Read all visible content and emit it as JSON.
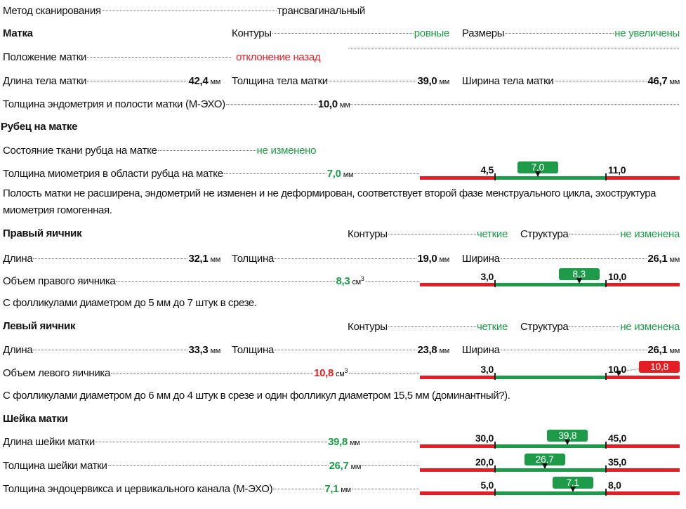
{
  "scan_method": {
    "label": "Метод сканирования",
    "value": "трансвагинальный"
  },
  "uterus": {
    "title": "Матка",
    "contours": {
      "label": "Контуры",
      "value": "ровные"
    },
    "size": {
      "label": "Размеры",
      "value": "не увеличены"
    },
    "position": {
      "label": "Положение матки",
      "value": "отклонение назад"
    },
    "length": {
      "label": "Длина тела матки",
      "value": "42,4",
      "unit": "мм"
    },
    "thickness": {
      "label": "Толщина тела матки",
      "value": "39,0",
      "unit": "мм"
    },
    "width": {
      "label": "Ширина тела матки",
      "value": "46,7",
      "unit": "мм"
    },
    "endometrium": {
      "label": "Толщина эндометрия и полости матки (М-ЭХО)",
      "value": "10,0",
      "unit": "мм"
    }
  },
  "scar": {
    "title": "Рубец на матке",
    "tissue": {
      "label": "Состояние ткани рубца на матке",
      "value": "не изменено"
    },
    "myometrium": {
      "label": "Толщина миометрия в области рубца на матке",
      "value": "7,0",
      "unit": "мм"
    }
  },
  "uterus_conclusion": "Полость матки не расширена, эндометрий не изменен и не деформирован, соответствует второй фазе менструального цикла, эхоструктура миометрия гомогенная.",
  "right_ovary": {
    "title": "Правый яичник",
    "contours": {
      "label": "Контуры",
      "value": "четкие"
    },
    "structure": {
      "label": "Структура",
      "value": "не изменена"
    },
    "length": {
      "label": "Длина",
      "value": "32,1",
      "unit": "мм"
    },
    "thickness": {
      "label": "Толщина",
      "value": "19,0",
      "unit": "мм"
    },
    "width": {
      "label": "Ширина",
      "value": "26,1",
      "unit": "мм"
    },
    "volume": {
      "label": "Объем правого яичника",
      "value": "8,3",
      "unit": "см",
      "sup": "3"
    },
    "note": "С фолликулами диаметром до 5 мм до 7 штук в срезе."
  },
  "left_ovary": {
    "title": "Левый яичник",
    "contours": {
      "label": "Контуры",
      "value": "четкие"
    },
    "structure": {
      "label": "Структура",
      "value": "не изменена"
    },
    "length": {
      "label": "Длина",
      "value": "33,3",
      "unit": "мм"
    },
    "thickness": {
      "label": "Толщина",
      "value": "23,8",
      "unit": "мм"
    },
    "width": {
      "label": "Ширина",
      "value": "26,1",
      "unit": "мм"
    },
    "volume": {
      "label": "Объем левого яичника",
      "value": "10,8",
      "unit": "см",
      "sup": "3"
    },
    "note": "С фолликулами диаметром до 6 мм до 4 штук в срезе и один фолликул диаметром 15,5 мм (доминантный?)."
  },
  "cervix": {
    "title": "Шейка матки",
    "length": {
      "label": "Длина шейки матки",
      "value": "39,8",
      "unit": "мм"
    },
    "thickness": {
      "label": "Толщина шейки матки",
      "value": "26,7",
      "unit": "мм"
    },
    "endocervix": {
      "label": "Толщина эндоцервикса и цервикального канала (М-ЭХО)",
      "value": "7,1",
      "unit": "мм"
    }
  },
  "scales": [
    {
      "min": 4.5,
      "max": 11.0,
      "min_label": "4,5",
      "max_label": "11,0",
      "value": 7.0,
      "value_label": "7,0"
    },
    {
      "min": 3.0,
      "max": 10.0,
      "min_label": "3,0",
      "max_label": "10,0",
      "value": 8.3,
      "value_label": "8,3"
    },
    {
      "min": 3.0,
      "max": 10.0,
      "min_label": "3,0",
      "max_label": "10,0",
      "value": 10.8,
      "value_label": "10,8"
    },
    {
      "min": 30.0,
      "max": 45.0,
      "min_label": "30,0",
      "max_label": "45,0",
      "value": 39.8,
      "value_label": "39,8"
    },
    {
      "min": 20.0,
      "max": 35.0,
      "min_label": "20,0",
      "max_label": "35,0",
      "value": 26.7,
      "value_label": "26,7"
    },
    {
      "min": 5.0,
      "max": 8.0,
      "min_label": "5,0",
      "max_label": "8,0",
      "value": 7.1,
      "value_label": "7,1"
    }
  ],
  "colors": {
    "normal": "#1e9b48",
    "abnormal": "#e31e24"
  }
}
